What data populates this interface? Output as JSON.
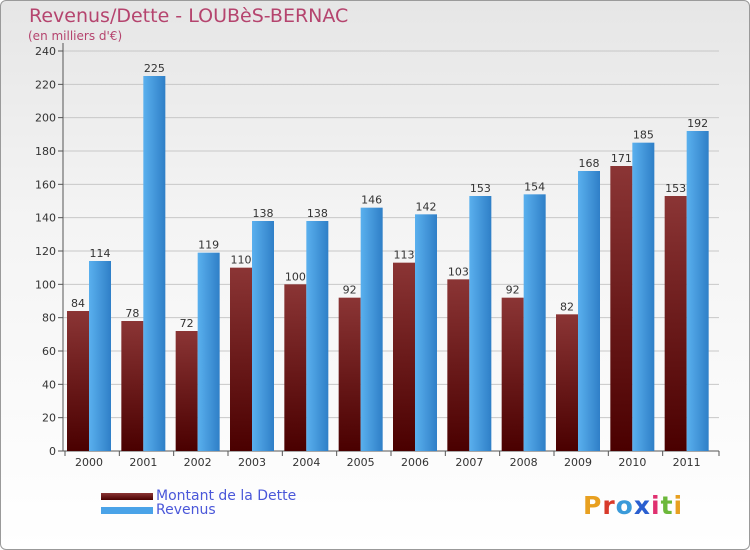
{
  "title": "Revenus/Dette - LOUBèS-BERNAC",
  "subtitle": "(en milliers d'€)",
  "logo_text": "Proxiti",
  "colors": {
    "dette": "#7a1c1c",
    "revenus": "#4aa3e8",
    "title": "#b5446e",
    "legend_text": "#4a57d9"
  },
  "chart_data": {
    "type": "bar",
    "categories": [
      "2000",
      "2001",
      "2002",
      "2003",
      "2004",
      "2005",
      "2006",
      "2007",
      "2008",
      "2009",
      "2010",
      "2011"
    ],
    "series": [
      {
        "name": "Montant de la Dette",
        "values": [
          84,
          78,
          72,
          110,
          100,
          92,
          113,
          103,
          92,
          82,
          171,
          153
        ]
      },
      {
        "name": "Revenus",
        "values": [
          114,
          225,
          119,
          138,
          138,
          146,
          142,
          153,
          154,
          168,
          185,
          192
        ]
      }
    ],
    "ylim": [
      0,
      240
    ],
    "yticks": [
      0,
      20,
      40,
      60,
      80,
      100,
      120,
      140,
      160,
      180,
      200,
      220,
      240
    ],
    "grid": true,
    "legend_position": "bottom-left"
  }
}
